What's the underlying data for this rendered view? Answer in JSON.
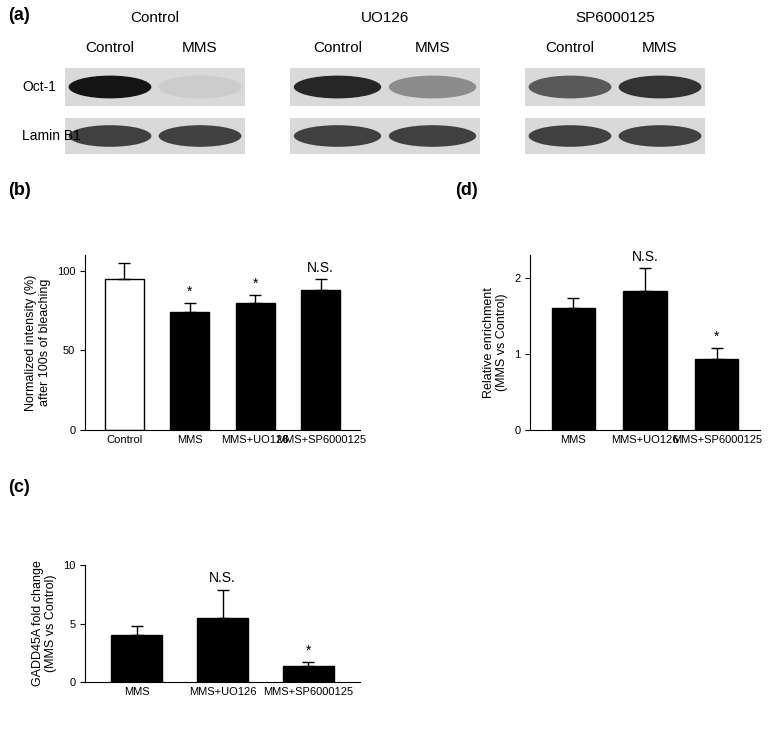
{
  "blot": {
    "panel": "(a)",
    "groups": [
      {
        "name": "Control",
        "lanes": [
          "Control",
          "MMS"
        ]
      },
      {
        "name": "UO126",
        "lanes": [
          "Control",
          "MMS"
        ]
      },
      {
        "name": "SP6000125",
        "lanes": [
          "Control",
          "MMS"
        ]
      }
    ],
    "rows": [
      "Oct-1",
      "Lamin B1"
    ]
  },
  "chart_data": [
    {
      "type": "bar",
      "panel": "(b)",
      "y_label": "Normalized intensity (%)\nafter 100s of bleaching",
      "categories": [
        "Control",
        "MMS",
        "MMS+UO126",
        "MMS+SP6000125"
      ],
      "values": [
        95,
        74,
        80,
        88
      ],
      "errors": [
        10,
        6,
        5,
        7
      ],
      "annotations": [
        null,
        "*",
        "*",
        "N.S."
      ],
      "colors": [
        "#ffffff",
        "#000000",
        "#000000",
        "#000000"
      ],
      "ylim": [
        0,
        110
      ],
      "yticks": [
        0,
        50,
        100
      ]
    },
    {
      "type": "bar",
      "panel": "(c)",
      "y_label": "GADD45A fold change\n(MMS vs Control)",
      "categories": [
        "MMS",
        "MMS+UO126",
        "MMS+SP6000125"
      ],
      "values": [
        4.0,
        5.5,
        1.4
      ],
      "errors": [
        0.8,
        2.4,
        0.3
      ],
      "annotations": [
        null,
        "N.S.",
        "*"
      ],
      "colors": [
        "#000000",
        "#000000",
        "#000000"
      ],
      "ylim": [
        0,
        10
      ],
      "yticks": [
        0,
        5,
        10
      ]
    },
    {
      "type": "bar",
      "panel": "(d)",
      "y_label": "Relative enrichment\n(MMS vs Control)",
      "categories": [
        "MMS",
        "MMS+UO126",
        "MMS+SP6000125"
      ],
      "values": [
        1.61,
        1.83,
        0.93
      ],
      "errors": [
        0.13,
        0.3,
        0.15
      ],
      "annotations": [
        null,
        "N.S.",
        "*"
      ],
      "colors": [
        "#000000",
        "#000000",
        "#000000"
      ],
      "ylim": [
        0,
        2.3
      ],
      "yticks": [
        0,
        1,
        2
      ]
    }
  ]
}
